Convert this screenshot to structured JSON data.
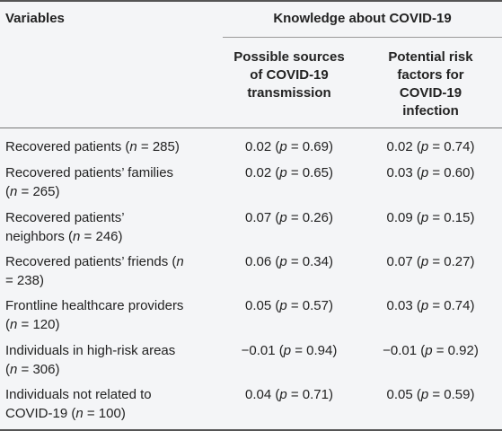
{
  "header": {
    "variables": "Variables",
    "group": "Knowledge about COVID-19",
    "col1": [
      "Possible sources",
      "of COVID-19",
      "transmission"
    ],
    "col2": [
      "Potential risk",
      "factors for",
      "COVID-19",
      "infection"
    ]
  },
  "rows": [
    {
      "label": [
        "Recovered patients (n = 285)"
      ],
      "v1": "0.02 (p = 0.69)",
      "v2": "0.02 (p = 0.74)"
    },
    {
      "label": [
        "Recovered patients’ families",
        "(n = 265)"
      ],
      "v1": "0.02 (p = 0.65)",
      "v2": "0.03 (p = 0.60)"
    },
    {
      "label": [
        "Recovered patients’",
        "neighbors (n = 246)"
      ],
      "v1": "0.07 (p = 0.26)",
      "v2": "0.09 (p = 0.15)"
    },
    {
      "label": [
        "Recovered patients’ friends (n",
        "= 238)"
      ],
      "v1": "0.06 (p = 0.34)",
      "v2": "0.07 (p = 0.27)"
    },
    {
      "label": [
        "Frontline healthcare providers",
        "(n = 120)"
      ],
      "v1": "0.05 (p = 0.57)",
      "v2": "0.03 (p = 0.74)"
    },
    {
      "label": [
        "Individuals in high-risk areas",
        "(n = 306)"
      ],
      "v1": "−0.01 (p = 0.94)",
      "v2": "−0.01 (p = 0.92)"
    },
    {
      "label": [
        "Individuals not related to",
        "COVID-19 (n = 100)"
      ],
      "v1": "0.04 (p = 0.71)",
      "v2": "0.05 (p = 0.59)"
    }
  ]
}
